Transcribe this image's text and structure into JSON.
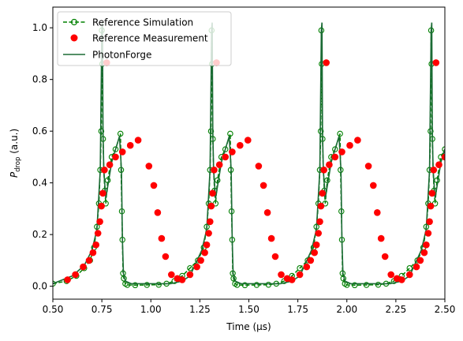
{
  "chart_data": {
    "type": "line",
    "title": "",
    "xlabel": "Time (µs)",
    "ylabel_main": "P",
    "ylabel_sub": "drop",
    "ylabel_unit": " (a.u.)",
    "xlim": [
      0.5,
      2.5
    ],
    "ylim": [
      -0.05,
      1.08
    ],
    "xticks": [
      0.5,
      0.75,
      1.0,
      1.25,
      1.5,
      1.75,
      2.0,
      2.25,
      2.5
    ],
    "xtick_labels": [
      "0.50",
      "0.75",
      "1.00",
      "1.25",
      "1.50",
      "1.75",
      "2.00",
      "2.25",
      "2.50"
    ],
    "yticks": [
      0.0,
      0.2,
      0.4,
      0.6,
      0.8,
      1.0
    ],
    "ytick_labels": [
      "0.0",
      "0.2",
      "0.4",
      "0.6",
      "0.8",
      "1.0"
    ],
    "grid": false,
    "legend": "top-left",
    "legend_entries": [
      "Reference Simulation",
      "Reference Measurement",
      "PhotonForge"
    ],
    "colors": {
      "simulation": "#008000",
      "measurement": "#ff0000",
      "photonforge": "#1b6b35"
    },
    "series": [
      {
        "name": "Reference Simulation",
        "style": "dashed-line-open-circles",
        "x": [
          0.5,
          0.57,
          0.62,
          0.66,
          0.69,
          0.71,
          0.725,
          0.735,
          0.742,
          0.747,
          0.75,
          0.752,
          0.756,
          0.76,
          0.765,
          0.77,
          0.78,
          0.8,
          0.82,
          0.845,
          0.848,
          0.852,
          0.855,
          0.858,
          0.862,
          0.87,
          0.88,
          0.92,
          0.98,
          1.04,
          1.08,
          1.12,
          1.16,
          1.2,
          1.24,
          1.27,
          1.285,
          1.295,
          1.302,
          1.307,
          1.31,
          1.312,
          1.316,
          1.32,
          1.325,
          1.33,
          1.34,
          1.36,
          1.38,
          1.405,
          1.408,
          1.412,
          1.415,
          1.418,
          1.422,
          1.43,
          1.44,
          1.48,
          1.54,
          1.6,
          1.64,
          1.68,
          1.72,
          1.76,
          1.8,
          1.83,
          1.845,
          1.855,
          1.862,
          1.867,
          1.87,
          1.872,
          1.876,
          1.88,
          1.885,
          1.89,
          1.9,
          1.92,
          1.94,
          1.965,
          1.968,
          1.972,
          1.975,
          1.978,
          1.982,
          1.99,
          2.0,
          2.04,
          2.1,
          2.16,
          2.2,
          2.24,
          2.28,
          2.32,
          2.36,
          2.39,
          2.405,
          2.415,
          2.422,
          2.427,
          2.43,
          2.432,
          2.436,
          2.44,
          2.445,
          2.45,
          2.46,
          2.48,
          2.5
        ],
        "y": [
          0.01,
          0.02,
          0.04,
          0.07,
          0.1,
          0.15,
          0.23,
          0.32,
          0.45,
          0.6,
          0.99,
          0.86,
          0.57,
          0.45,
          0.37,
          0.32,
          0.41,
          0.5,
          0.53,
          0.59,
          0.45,
          0.29,
          0.18,
          0.05,
          0.03,
          0.01,
          0.005,
          0.004,
          0.005,
          0.006,
          0.01,
          0.02,
          0.04,
          0.07,
          0.1,
          0.15,
          0.23,
          0.32,
          0.45,
          0.6,
          0.99,
          0.86,
          0.57,
          0.45,
          0.37,
          0.32,
          0.41,
          0.5,
          0.53,
          0.59,
          0.45,
          0.29,
          0.18,
          0.05,
          0.03,
          0.01,
          0.005,
          0.004,
          0.005,
          0.006,
          0.01,
          0.02,
          0.04,
          0.07,
          0.1,
          0.15,
          0.23,
          0.32,
          0.45,
          0.6,
          0.99,
          0.86,
          0.57,
          0.45,
          0.37,
          0.32,
          0.41,
          0.5,
          0.53,
          0.59,
          0.45,
          0.29,
          0.18,
          0.05,
          0.03,
          0.01,
          0.005,
          0.004,
          0.005,
          0.006,
          0.01,
          0.02,
          0.04,
          0.07,
          0.1,
          0.15,
          0.23,
          0.32,
          0.45,
          0.6,
          0.99,
          0.86,
          0.57,
          0.45,
          0.37,
          0.32,
          0.41,
          0.5,
          0.53
        ]
      },
      {
        "name": "Reference Measurement",
        "style": "filled-circles",
        "x": [
          0.575,
          0.615,
          0.655,
          0.685,
          0.705,
          0.72,
          0.73,
          0.74,
          0.748,
          0.755,
          0.763,
          0.775,
          0.79,
          0.82,
          0.855,
          0.895,
          0.935,
          0.99,
          1.015,
          1.035,
          1.055,
          1.075,
          1.105,
          1.135,
          1.16,
          1.2,
          1.235,
          1.255,
          1.275,
          1.285,
          1.295,
          1.302,
          1.308,
          1.315,
          1.323,
          1.335,
          1.35,
          1.38,
          1.415,
          1.455,
          1.495,
          1.55,
          1.575,
          1.595,
          1.615,
          1.635,
          1.665,
          1.695,
          1.72,
          1.76,
          1.795,
          1.815,
          1.835,
          1.845,
          1.855,
          1.862,
          1.868,
          1.875,
          1.883,
          1.895,
          1.91,
          1.94,
          1.975,
          2.015,
          2.055,
          2.11,
          2.135,
          2.155,
          2.175,
          2.195,
          2.225,
          2.255,
          2.28,
          2.32,
          2.355,
          2.375,
          2.395,
          2.405,
          2.415,
          2.422,
          2.428,
          2.435,
          2.443,
          2.455,
          2.47,
          2.5
        ],
        "y": [
          0.025,
          0.045,
          0.075,
          0.1,
          0.13,
          0.16,
          0.205,
          0.25,
          0.31,
          0.36,
          0.45,
          0.865,
          0.47,
          0.5,
          0.52,
          0.545,
          0.565,
          0.465,
          0.39,
          0.285,
          0.185,
          0.115,
          0.045,
          0.03,
          0.025,
          0.045,
          0.075,
          0.1,
          0.13,
          0.16,
          0.205,
          0.25,
          0.31,
          0.36,
          0.45,
          0.865,
          0.47,
          0.5,
          0.52,
          0.545,
          0.565,
          0.465,
          0.39,
          0.285,
          0.185,
          0.115,
          0.045,
          0.03,
          0.025,
          0.045,
          0.075,
          0.1,
          0.13,
          0.16,
          0.205,
          0.25,
          0.31,
          0.36,
          0.45,
          0.865,
          0.47,
          0.5,
          0.52,
          0.545,
          0.565,
          0.465,
          0.39,
          0.285,
          0.185,
          0.115,
          0.045,
          0.03,
          0.025,
          0.045,
          0.075,
          0.1,
          0.13,
          0.16,
          0.205,
          0.25,
          0.31,
          0.36,
          0.45,
          0.865,
          0.47,
          0.5
        ]
      },
      {
        "name": "PhotonForge",
        "style": "solid-line",
        "x": [
          0.5,
          0.6,
          0.66,
          0.7,
          0.725,
          0.742,
          0.75,
          0.753,
          0.756,
          0.76,
          0.77,
          0.8,
          0.84,
          0.85,
          0.855,
          0.86,
          0.87,
          0.9,
          1.0,
          1.1,
          1.16,
          1.2,
          1.26,
          1.285,
          1.302,
          1.31,
          1.313,
          1.316,
          1.32,
          1.33,
          1.36,
          1.4,
          1.41,
          1.415,
          1.42,
          1.43,
          1.46,
          1.56,
          1.66,
          1.72,
          1.76,
          1.82,
          1.845,
          1.862,
          1.87,
          1.873,
          1.876,
          1.88,
          1.89,
          1.92,
          1.96,
          1.97,
          1.975,
          1.98,
          1.99,
          2.02,
          2.12,
          2.22,
          2.28,
          2.32,
          2.38,
          2.405,
          2.422,
          2.43,
          2.433,
          2.436,
          2.44,
          2.45,
          2.48,
          2.5
        ],
        "y": [
          0.01,
          0.04,
          0.08,
          0.14,
          0.22,
          0.45,
          0.99,
          1.02,
          0.6,
          0.45,
          0.34,
          0.48,
          0.58,
          0.45,
          0.18,
          0.05,
          0.02,
          0.01,
          0.01,
          0.01,
          0.02,
          0.04,
          0.14,
          0.22,
          0.45,
          0.99,
          1.02,
          0.6,
          0.45,
          0.34,
          0.48,
          0.58,
          0.45,
          0.18,
          0.05,
          0.02,
          0.01,
          0.01,
          0.01,
          0.02,
          0.04,
          0.14,
          0.22,
          0.45,
          0.99,
          1.02,
          0.6,
          0.45,
          0.34,
          0.48,
          0.58,
          0.45,
          0.18,
          0.05,
          0.02,
          0.01,
          0.01,
          0.01,
          0.02,
          0.04,
          0.14,
          0.22,
          0.45,
          0.99,
          1.02,
          0.6,
          0.45,
          0.34,
          0.48,
          0.53
        ]
      }
    ]
  }
}
